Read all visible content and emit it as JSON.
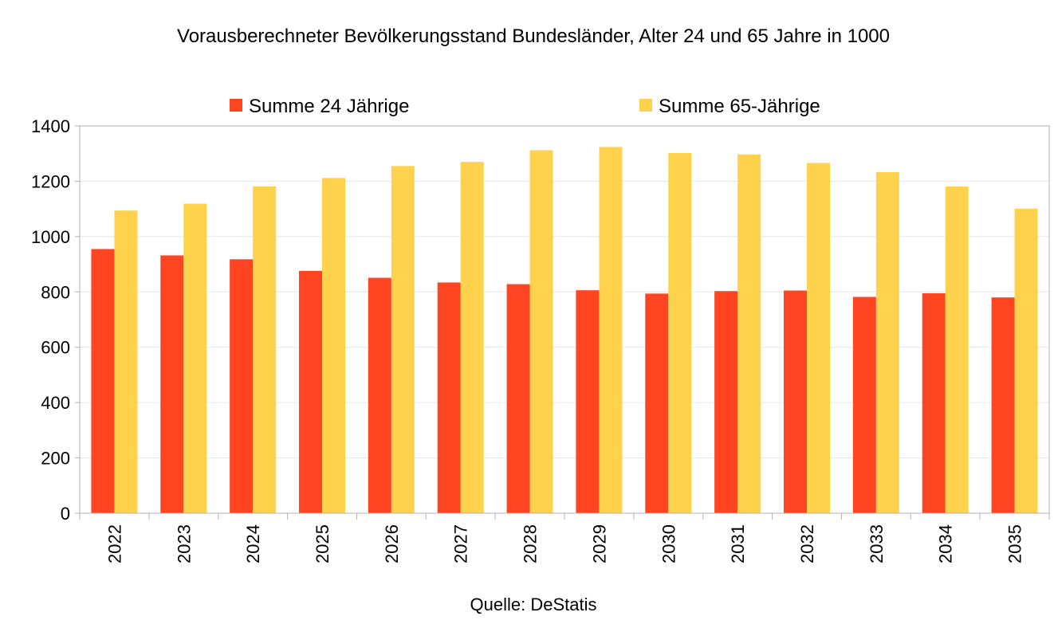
{
  "chart_data": {
    "type": "bar",
    "title": "Vorausberechneter Bevölkerungsstand Bundesländer, Alter 24 und 65 Jahre in 1000",
    "source": "Quelle: DeStatis",
    "xlabel": "",
    "ylabel": "",
    "categories": [
      "2022",
      "2023",
      "2024",
      "2025",
      "2026",
      "2027",
      "2028",
      "2029",
      "2030",
      "2031",
      "2032",
      "2033",
      "2034",
      "2035"
    ],
    "series": [
      {
        "name": "Summe 24 Jährige",
        "color": "#ff4422",
        "values": [
          955,
          932,
          918,
          876,
          851,
          834,
          828,
          806,
          794,
          803,
          805,
          782,
          795,
          780
        ]
      },
      {
        "name": "Summe 65-Jährige",
        "color": "#ffd24d",
        "values": [
          1094,
          1119,
          1181,
          1212,
          1255,
          1270,
          1312,
          1324,
          1302,
          1297,
          1266,
          1233,
          1181,
          1101
        ]
      }
    ],
    "yticks": [
      "0",
      "200",
      "400",
      "600",
      "800",
      "1000",
      "1200",
      "1400"
    ],
    "ylim": [
      0,
      1400
    ],
    "grid": true,
    "legend_position": "top"
  }
}
